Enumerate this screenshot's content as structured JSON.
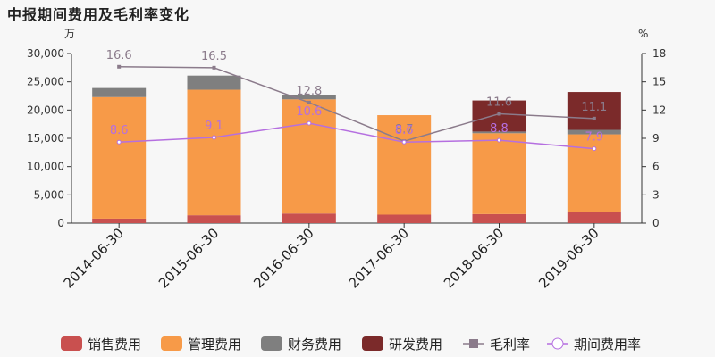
{
  "title": "中报期间费用及毛利率变化",
  "chart_data": {
    "type": "bar",
    "stacked": true,
    "categories": [
      "2014-06-30",
      "2015-06-30",
      "2016-06-30",
      "2017-06-30",
      "2018-06-30",
      "2019-06-30"
    ],
    "y_left": {
      "unit": "万",
      "ylim": [
        0,
        30000
      ],
      "ticks": [
        "0",
        "5,000",
        "10,000",
        "15,000",
        "20,000",
        "25,000",
        "30,000"
      ]
    },
    "y_right": {
      "unit": "%",
      "ylim": [
        0,
        18
      ],
      "ticks": [
        "0",
        "3",
        "6",
        "9",
        "12",
        "15",
        "18"
      ]
    },
    "series": [
      {
        "name": "销售费用",
        "type": "bar",
        "color": "#c9504f",
        "values": [
          800,
          1400,
          1700,
          1500,
          1600,
          1900
        ]
      },
      {
        "name": "管理费用",
        "type": "bar",
        "color": "#f79a48",
        "values": [
          21500,
          22200,
          20200,
          17600,
          14300,
          13800
        ]
      },
      {
        "name": "财务费用",
        "type": "bar",
        "color": "#7f7f7f",
        "values": [
          1600,
          2500,
          800,
          0,
          300,
          800
        ]
      },
      {
        "name": "研发费用",
        "type": "bar",
        "color": "#7b2a2a",
        "values": [
          0,
          0,
          0,
          0,
          5500,
          6700
        ]
      },
      {
        "name": "毛利率",
        "type": "line",
        "axis": "right",
        "color": "#8b7b8b",
        "values": [
          16.6,
          16.5,
          12.8,
          8.7,
          11.6,
          11.1
        ],
        "labels": [
          "16.6",
          "16.5",
          "12.8",
          "8.7",
          "11.6",
          "11.1"
        ]
      },
      {
        "name": "期间费用率",
        "type": "line",
        "axis": "right",
        "color": "#b56fe0",
        "values": [
          8.6,
          9.1,
          10.6,
          8.6,
          8.8,
          7.9
        ],
        "labels": [
          "8.6",
          "9.1",
          "10.6",
          "8.6",
          "8.8",
          "7.9"
        ]
      }
    ],
    "legend_position": "bottom"
  }
}
